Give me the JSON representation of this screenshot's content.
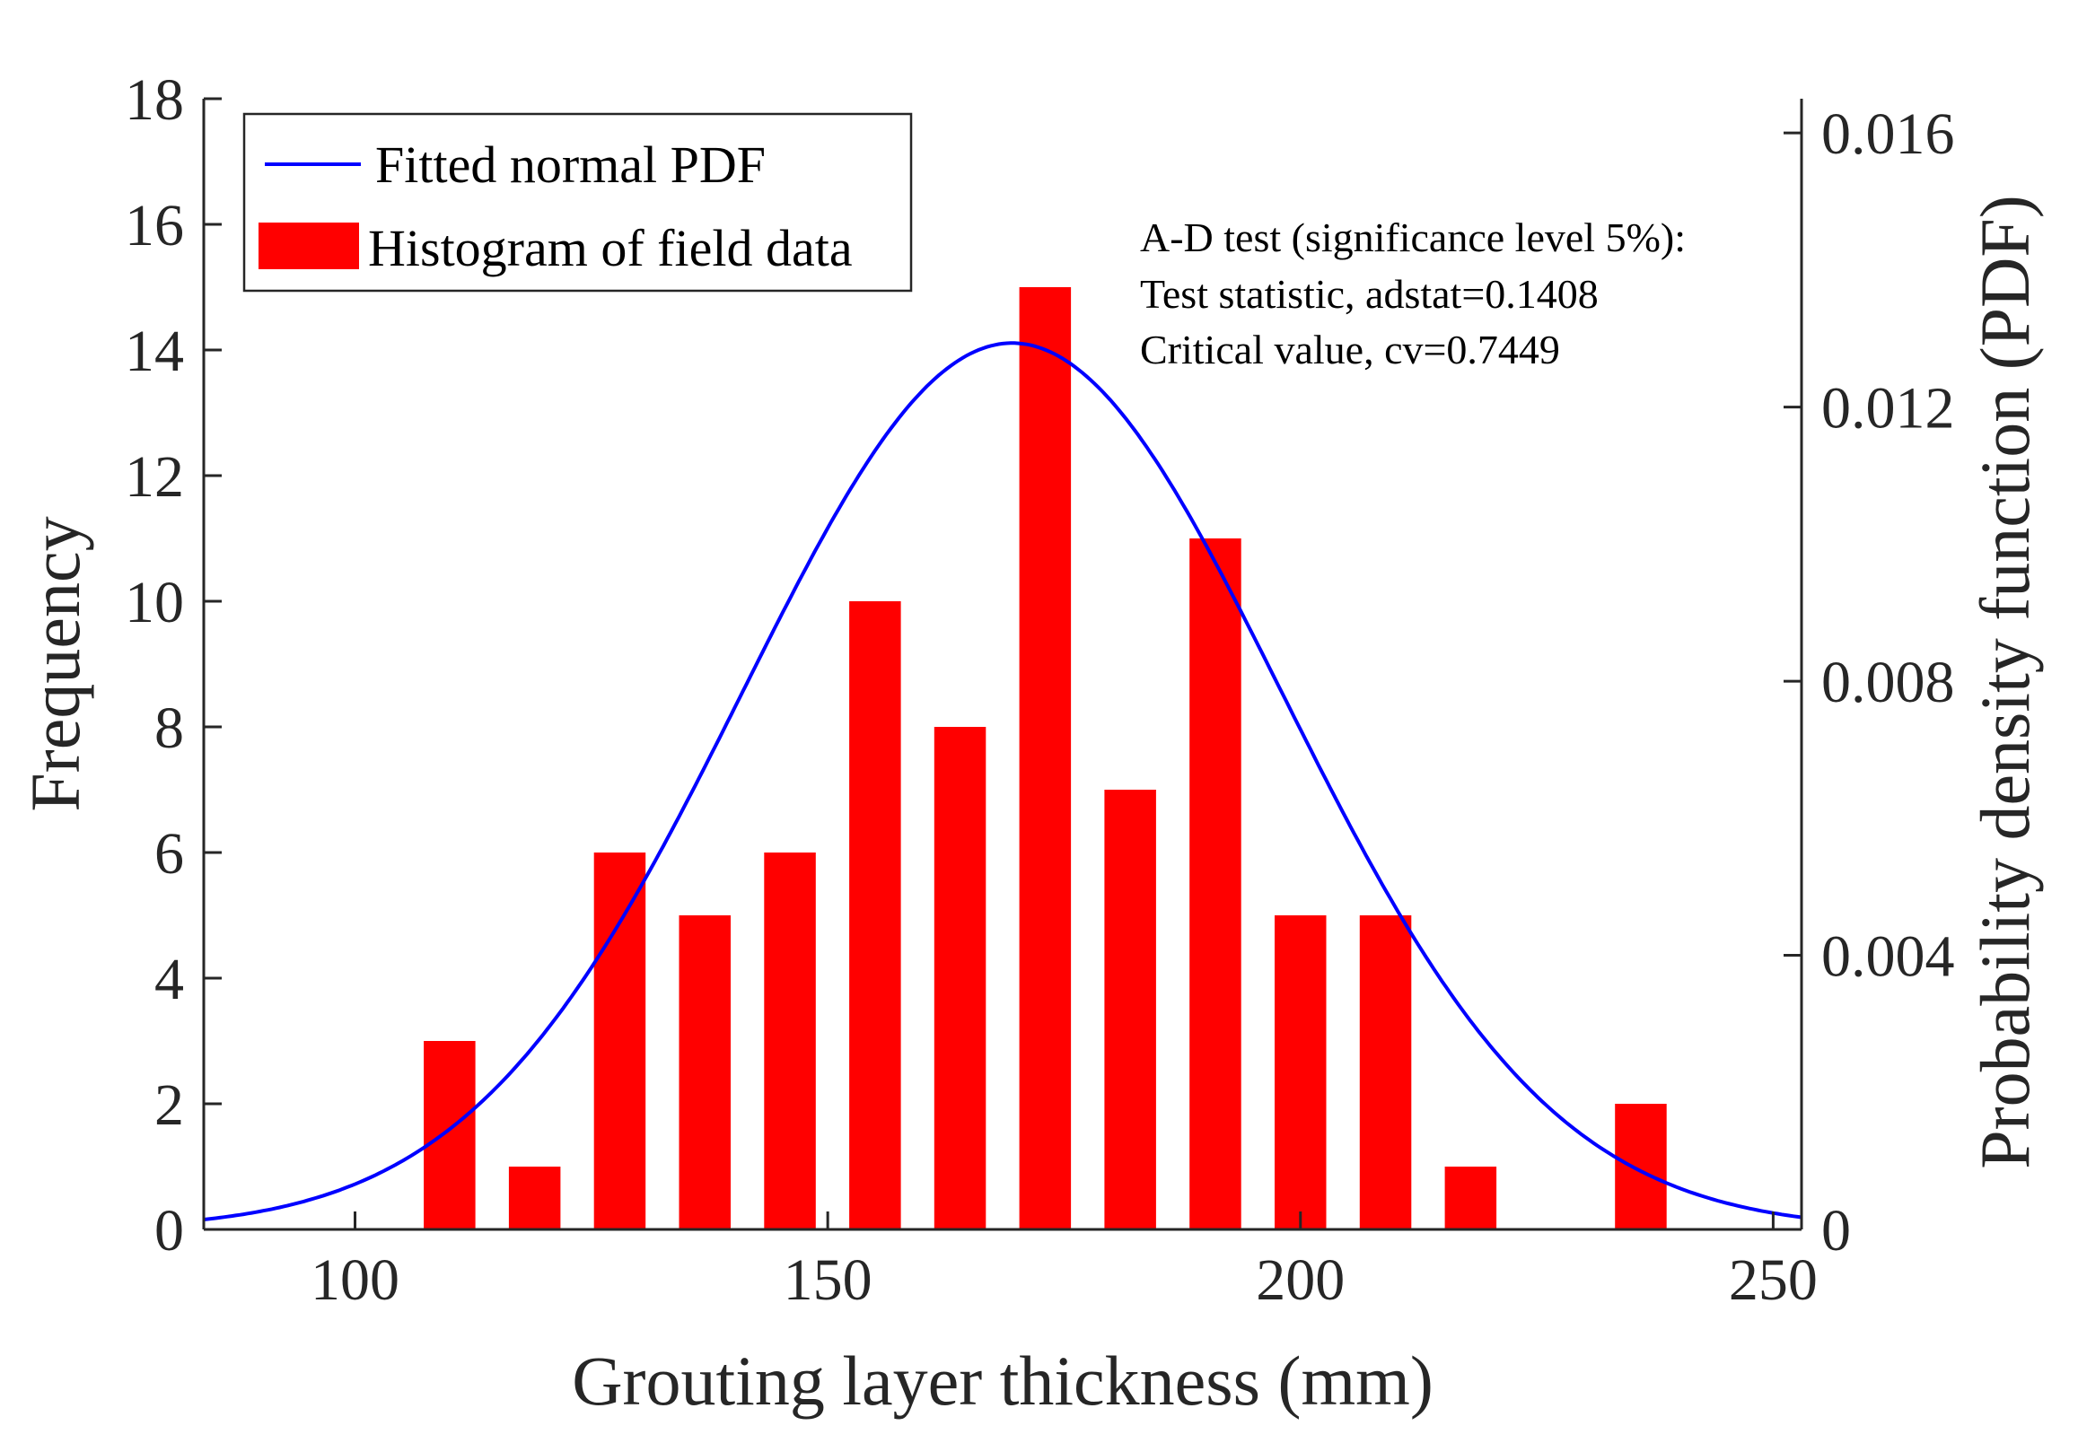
{
  "chart_data": {
    "type": "bar",
    "title": "",
    "xlabel": "Grouting layer thickness (mm)",
    "ylabel": "Frequency",
    "ylabel_right": "Probability density function (PDF)",
    "xlim": [
      84,
      253
    ],
    "ylim": [
      0,
      18
    ],
    "ylim_right": [
      0,
      0.0165
    ],
    "x_ticks": [
      100,
      150,
      200,
      250
    ],
    "y_ticks": [
      0,
      2,
      4,
      6,
      8,
      10,
      12,
      14,
      16,
      18
    ],
    "y_ticks_right": [
      "0",
      "0.004",
      "0.008",
      "0.012",
      "0.016"
    ],
    "y_ticks_right_values": [
      0,
      0.004,
      0.008,
      0.012,
      0.016
    ],
    "bin_width": 7,
    "bar_fraction": 0.78,
    "bins": [
      {
        "center": 110,
        "count": 3
      },
      {
        "center": 119,
        "count": 1
      },
      {
        "center": 128,
        "count": 6
      },
      {
        "center": 137,
        "count": 5
      },
      {
        "center": 146,
        "count": 6
      },
      {
        "center": 155,
        "count": 10
      },
      {
        "center": 164,
        "count": 8
      },
      {
        "center": 173,
        "count": 15
      },
      {
        "center": 182,
        "count": 7
      },
      {
        "center": 191,
        "count": 11
      },
      {
        "center": 200,
        "count": 5
      },
      {
        "center": 209,
        "count": 5
      },
      {
        "center": 218,
        "count": 1
      },
      {
        "center": 236,
        "count": 2
      }
    ],
    "fit": {
      "distribution": "normal",
      "mean": 169.5,
      "sigma": 28.5,
      "scale_factor": 1008
    },
    "series": [
      {
        "name": "Histogram of field data",
        "type": "bar",
        "color": "#ff0000"
      },
      {
        "name": "Fitted normal PDF",
        "type": "line",
        "color": "#0000ff"
      }
    ],
    "legend": [
      "Fitted normal PDF",
      "Histogram of field data"
    ],
    "legend_position": "top-left",
    "annotations": [
      "A-D test (significance level 5%):",
      "Test statistic, adstat=0.1408",
      "Critical value, cv=0.7449"
    ],
    "grid": false
  }
}
